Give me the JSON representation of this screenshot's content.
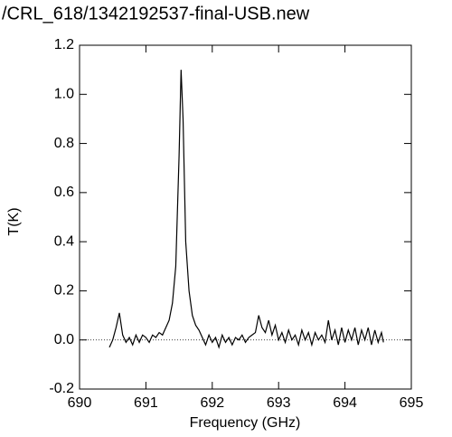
{
  "chart_data": {
    "type": "line",
    "title": "/CRL_618/1342192537-final-USB.new",
    "x_label": "Frequency (GHz)",
    "y_label": "T(K)",
    "xlim": [
      690,
      695
    ],
    "ylim": [
      -0.2,
      1.2
    ],
    "xticks": [
      690,
      691,
      692,
      693,
      694,
      695
    ],
    "yticks": [
      {
        "value": -0.2,
        "label": "-0.2"
      },
      {
        "value": 0,
        "label": "0.0"
      },
      {
        "value": 0.2,
        "label": "0.2"
      },
      {
        "value": 0.4,
        "label": "0.4"
      },
      {
        "value": 0.6,
        "label": "0.6"
      },
      {
        "value": 0.8,
        "label": "0.8"
      },
      {
        "value": 1.0,
        "label": "1.0"
      },
      {
        "value": 1.2,
        "label": "1.2"
      }
    ],
    "zero_line": true,
    "series": [
      {
        "color": "#000000",
        "x": [
          690.45,
          690.5,
          690.55,
          690.6,
          690.65,
          690.7,
          690.75,
          690.8,
          690.85,
          690.9,
          690.95,
          691.0,
          691.05,
          691.1,
          691.15,
          691.2,
          691.25,
          691.3,
          691.35,
          691.4,
          691.45,
          691.5,
          691.53,
          691.56,
          691.6,
          691.65,
          691.7,
          691.75,
          691.8,
          691.85,
          691.9,
          691.95,
          692.0,
          692.05,
          692.1,
          692.15,
          692.2,
          692.25,
          692.3,
          692.35,
          692.4,
          692.45,
          692.5,
          692.55,
          692.6,
          692.65,
          692.7,
          692.75,
          692.8,
          692.85,
          692.9,
          692.95,
          693.0,
          693.05,
          693.1,
          693.15,
          693.2,
          693.25,
          693.3,
          693.35,
          693.4,
          693.45,
          693.5,
          693.55,
          693.6,
          693.65,
          693.7,
          693.75,
          693.8,
          693.85,
          693.9,
          693.95,
          694.0,
          694.05,
          694.1,
          694.15,
          694.2,
          694.25,
          694.3,
          694.35,
          694.4,
          694.45,
          694.5,
          694.55,
          694.58
        ],
        "values": [
          -0.03,
          0.0,
          0.05,
          0.11,
          0.02,
          -0.01,
          0.01,
          -0.02,
          0.02,
          -0.01,
          0.02,
          0.01,
          -0.01,
          0.02,
          0.01,
          0.03,
          0.02,
          0.05,
          0.08,
          0.15,
          0.3,
          0.75,
          1.1,
          0.9,
          0.4,
          0.2,
          0.1,
          0.06,
          0.04,
          0.01,
          -0.02,
          0.02,
          -0.01,
          0.01,
          -0.03,
          0.02,
          -0.01,
          0.01,
          -0.02,
          0.01,
          0.0,
          0.02,
          -0.01,
          0.01,
          0.02,
          0.03,
          0.1,
          0.05,
          0.03,
          0.08,
          0.02,
          0.06,
          0.0,
          0.03,
          -0.01,
          0.04,
          0.0,
          0.02,
          -0.02,
          0.04,
          0.0,
          0.03,
          -0.02,
          0.03,
          0.0,
          0.02,
          -0.01,
          0.08,
          0.0,
          0.04,
          -0.02,
          0.05,
          -0.01,
          0.04,
          0.0,
          0.05,
          -0.02,
          0.04,
          0.0,
          0.05,
          -0.02,
          0.04,
          -0.01,
          0.03,
          -0.01
        ]
      }
    ]
  }
}
